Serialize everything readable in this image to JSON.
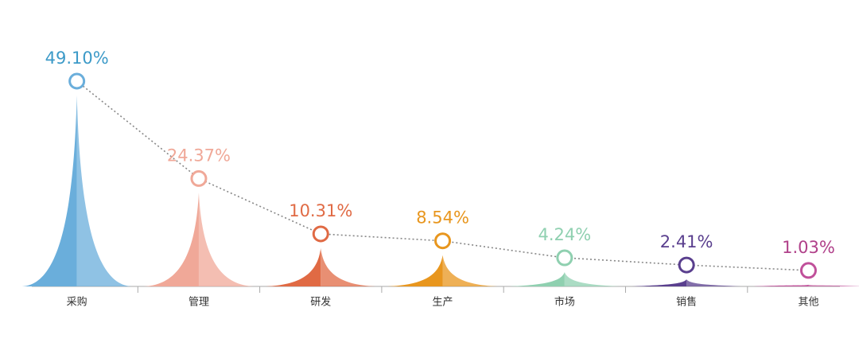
{
  "chart_data": {
    "type": "peak",
    "categories": [
      "采购",
      "管理",
      "研发",
      "生产",
      "市场",
      "销售",
      "其他"
    ],
    "values": [
      49.1,
      24.37,
      10.31,
      8.54,
      4.24,
      2.41,
      1.03
    ],
    "value_labels": [
      "49.10%",
      "24.37%",
      "10.31%",
      "8.54%",
      "4.24%",
      "2.41%",
      "1.03%"
    ],
    "colors": [
      "#6aaedb",
      "#f0a898",
      "#e06a44",
      "#e8961e",
      "#8fd0b0",
      "#5a3f8e",
      "#c0509a"
    ],
    "label_colors": [
      "#3c9ac8",
      "#f0a898",
      "#e06a44",
      "#e8961e",
      "#8fd0b0",
      "#5a3f8e",
      "#b0408a"
    ]
  }
}
